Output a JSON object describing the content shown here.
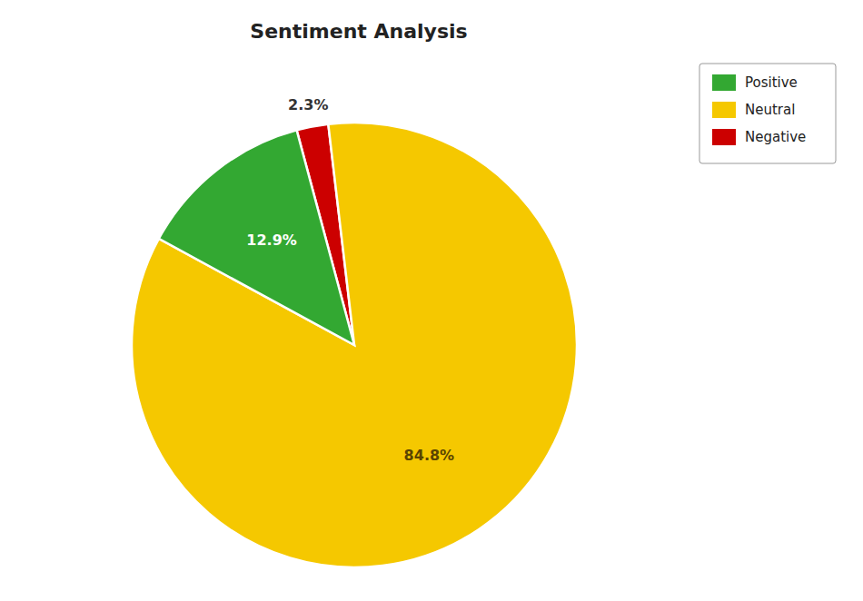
{
  "chart_data": {
    "type": "pie",
    "title": "Sentiment Analysis",
    "categories": [
      "Negative",
      "Neutral",
      "Positive"
    ],
    "values": [
      2.3,
      84.8,
      12.9
    ],
    "value_labels": [
      "2.3%",
      "84.8%",
      "12.9%"
    ],
    "colors": [
      "#cc0000",
      "#f5c800",
      "#33a832"
    ],
    "data_labels": true,
    "legend": "top-right"
  }
}
